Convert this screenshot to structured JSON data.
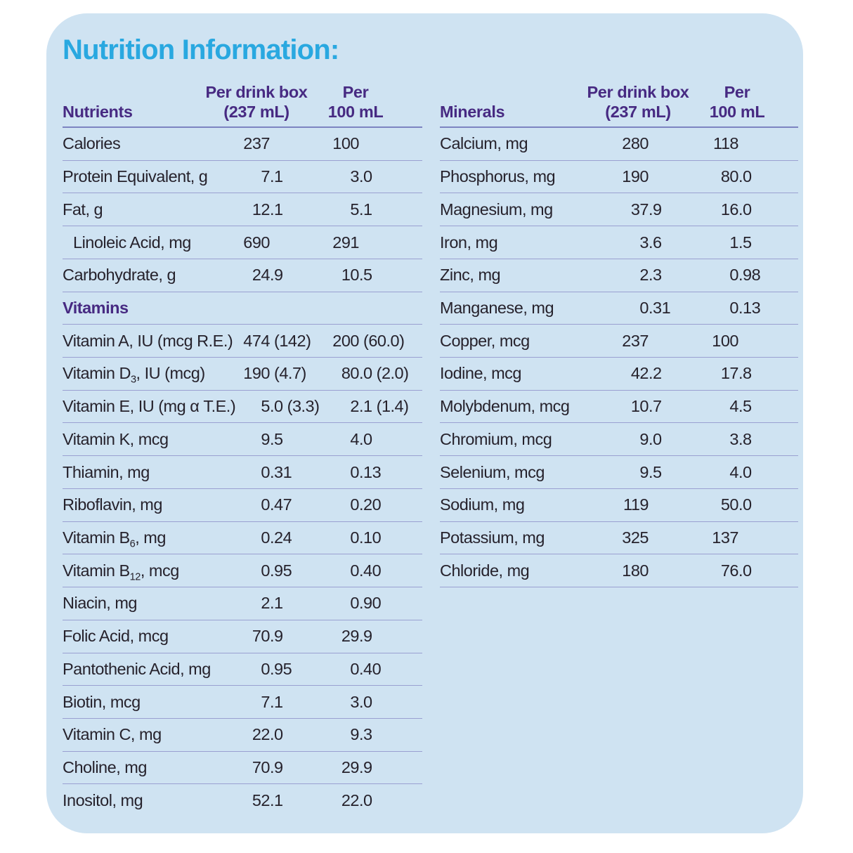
{
  "title": "Nutrition Information:",
  "colors": {
    "card_bg": "#cfe3f2",
    "title_blue": "#29a8e0",
    "header_purple": "#472a82",
    "text_dark": "#26222c",
    "rule": "#9aa0d1",
    "header_rule": "#7d84c1"
  },
  "tables": [
    {
      "name": "Nutrients",
      "header": {
        "label": "Nutrients",
        "col1": [
          "Per drink box",
          "(237 mL)"
        ],
        "col2": [
          "Per",
          "100 mL"
        ]
      },
      "rows": [
        {
          "label": "Calories",
          "per_box": "237",
          "per_100": "100"
        },
        {
          "label": "Protein Equivalent, g",
          "per_box": "7.1",
          "per_100": "3.0"
        },
        {
          "label": "Fat, g",
          "per_box": "12.1",
          "per_100": "5.1"
        },
        {
          "label": "Linoleic Acid, mg",
          "indent": true,
          "per_box": "690",
          "per_100": "291"
        },
        {
          "label": "Carbohydrate, g",
          "per_box": "24.9",
          "per_100": "10.5"
        },
        {
          "section": "Vitamins"
        },
        {
          "label": "Vitamin A, IU (mcg R.E.)",
          "per_box": "474 (142)",
          "per_100": "200 (60.0)"
        },
        {
          "label": "Vitamin D_{3}, IU (mcg)",
          "per_box": "190 (4.7)",
          "per_100": "80.0 (2.0)"
        },
        {
          "label": "Vitamin E, IU (mg α T.E.)",
          "per_box": "5.0 (3.3)",
          "per_100": "2.1 (1.4)"
        },
        {
          "label": "Vitamin K, mcg",
          "per_box": "9.5",
          "per_100": "4.0"
        },
        {
          "label": "Thiamin, mg",
          "per_box": "0.31",
          "per_100": "0.13"
        },
        {
          "label": "Riboflavin, mg",
          "per_box": "0.47",
          "per_100": "0.20"
        },
        {
          "label": "Vitamin B_{6}, mg",
          "per_box": "0.24",
          "per_100": "0.10"
        },
        {
          "label": "Vitamin B_{12}, mcg",
          "per_box": "0.95",
          "per_100": "0.40"
        },
        {
          "label": "Niacin, mg",
          "per_box": "2.1",
          "per_100": "0.90"
        },
        {
          "label": "Folic Acid, mcg",
          "per_box": "70.9",
          "per_100": "29.9"
        },
        {
          "label": "Pantothenic Acid, mg",
          "per_box": "0.95",
          "per_100": "0.40"
        },
        {
          "label": "Biotin, mcg",
          "per_box": "7.1",
          "per_100": "3.0"
        },
        {
          "label": "Vitamin C, mg",
          "per_box": "22.0",
          "per_100": "9.3"
        },
        {
          "label": "Choline, mg",
          "per_box": "70.9",
          "per_100": "29.9"
        },
        {
          "label": "Inositol, mg",
          "per_box": "52.1",
          "per_100": "22.0",
          "last": true
        }
      ]
    },
    {
      "name": "Minerals",
      "header": {
        "label": "Minerals",
        "col1": [
          "Per drink box",
          "(237 mL)"
        ],
        "col2": [
          "Per",
          "100 mL"
        ]
      },
      "rows": [
        {
          "label": "Calcium, mg",
          "per_box": "280",
          "per_100": "118"
        },
        {
          "label": "Phosphorus, mg",
          "per_box": "190",
          "per_100": "80.0"
        },
        {
          "label": "Magnesium, mg",
          "per_box": "37.9",
          "per_100": "16.0"
        },
        {
          "label": "Iron, mg",
          "per_box": "3.6",
          "per_100": "1.5"
        },
        {
          "label": "Zinc, mg",
          "per_box": "2.3",
          "per_100": "0.98"
        },
        {
          "label": "Manganese, mg",
          "per_box": "0.31",
          "per_100": "0.13"
        },
        {
          "label": "Copper, mcg",
          "per_box": "237",
          "per_100": "100"
        },
        {
          "label": "Iodine, mcg",
          "per_box": "42.2",
          "per_100": "17.8"
        },
        {
          "label": "Molybdenum, mcg",
          "per_box": "10.7",
          "per_100": "4.5"
        },
        {
          "label": "Chromium, mcg",
          "per_box": "9.0",
          "per_100": "3.8"
        },
        {
          "label": "Selenium, mcg",
          "per_box": "9.5",
          "per_100": "4.0"
        },
        {
          "label": "Sodium, mg",
          "per_box": "119",
          "per_100": "50.0"
        },
        {
          "label": "Potassium, mg",
          "per_box": "325",
          "per_100": "137"
        },
        {
          "label": "Chloride, mg",
          "per_box": "180",
          "per_100": "76.0"
        }
      ]
    }
  ]
}
